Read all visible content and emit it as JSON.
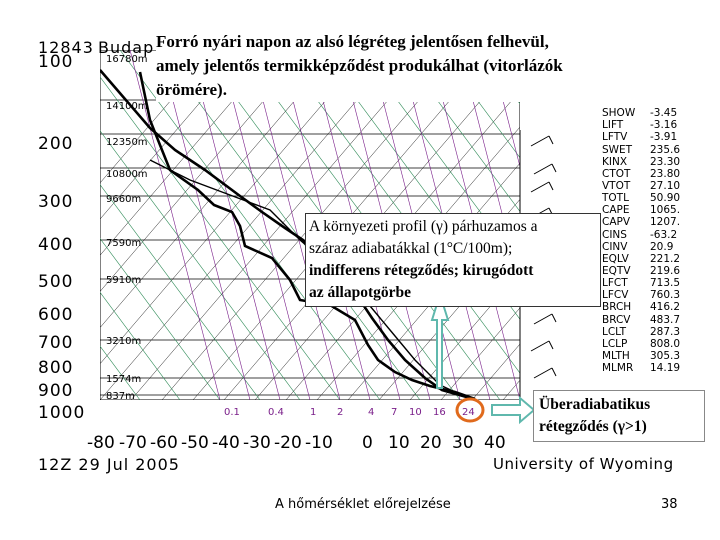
{
  "station": "12843",
  "station_name": "Budap",
  "date": "12Z 29 Jul 2005",
  "source": "University of Wyoming",
  "title_note": "Forró nyári napon az alsó légréteg jelentősen felhevül, amely jelentős termikképződést produkálhat (vitorlázók örömére).",
  "title_lines": [
    "Forró nyári napon az alsó légréteg jelentősen felhevül,",
    "amely jelentős termikképződést produkálhat (vitorlázók",
    "örömére)."
  ],
  "pressure_levels": [
    "100",
    "200",
    "300",
    "400",
    "500",
    "600",
    "700",
    "800",
    "900",
    "1000"
  ],
  "heights": [
    "16780m",
    "14100m",
    "12350m",
    "10800m",
    "9660m",
    "7590m",
    "5910m",
    "3210m",
    "1574m",
    "837m"
  ],
  "temperature_axis": [
    "-80",
    "-70",
    "-60",
    "-50",
    "-40",
    "-30",
    "-20",
    "-10",
    "0",
    "10",
    "20",
    "30",
    "40"
  ],
  "mixing_ratios": [
    "0.1",
    "0.4",
    "1",
    "2",
    "4",
    "7",
    "10",
    "16",
    "24"
  ],
  "indices": [
    {
      "name": "SHOW",
      "value": "-3.45"
    },
    {
      "name": "LIFT",
      "value": "-3.16"
    },
    {
      "name": "LFTV",
      "value": "-3.91"
    },
    {
      "name": "SWET",
      "value": "235.6"
    },
    {
      "name": "KINX",
      "value": "23.30"
    },
    {
      "name": "CTOT",
      "value": "23.80"
    },
    {
      "name": "VTOT",
      "value": "27.10"
    },
    {
      "name": "TOTL",
      "value": "50.90"
    },
    {
      "name": "CAPE",
      "value": "1065."
    },
    {
      "name": "CAPV",
      "value": "1207."
    },
    {
      "name": "CINS",
      "value": "-63.2"
    },
    {
      "name": "CINV",
      "value": "20.9"
    },
    {
      "name": "EQLV",
      "value": "221.2"
    },
    {
      "name": "EQTV",
      "value": "219.6"
    },
    {
      "name": "LFCT",
      "value": "713.5"
    },
    {
      "name": "LFCV",
      "value": "760.3"
    },
    {
      "name": "BRCH",
      "value": "416.2"
    },
    {
      "name": "BRCV",
      "value": "483.7"
    },
    {
      "name": "LCLT",
      "value": "287.3"
    },
    {
      "name": "LCLP",
      "value": "808.0"
    },
    {
      "name": "MLTH",
      "value": "305.3"
    },
    {
      "name": "MLMR",
      "value": "14.19"
    }
  ],
  "annotation_middle_lines": [
    "A környezeti profil (γ) párhuzamos a",
    "száraz adiabatákkal (1°C/100m);",
    "indifferens rétegződés; kirugódott",
    "az állapotgörbe"
  ],
  "annotation_bottom_lines": [
    "Überadiabatikus",
    "rétegződés (γ>1)"
  ],
  "footer_text": "A hőmérséklet előrejelzése",
  "page_number": "38",
  "colors": {
    "isotherm": "#1a1a1a",
    "dry_adiabat": "#2e8b57",
    "moist_adiabat": "#7a1f8a",
    "arrow": "#5fb8ad",
    "circle": "#e06a1c"
  }
}
